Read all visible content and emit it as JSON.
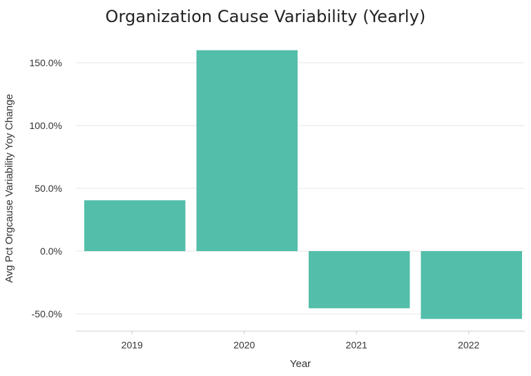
{
  "chart_data": {
    "type": "bar",
    "title": "Organization Cause Variability (Yearly)",
    "xlabel": "Year",
    "ylabel": "Avg Pct Orgcause Variability Yoy Change",
    "categories": [
      "2019",
      "2020",
      "2021",
      "2022"
    ],
    "values": [
      40.5,
      160.0,
      -45.5,
      -54.0
    ],
    "ylim": [
      -65,
      165
    ],
    "yticks": [
      -50,
      0,
      50,
      100,
      150
    ],
    "ytick_labels": [
      "-50.0%",
      "0.0%",
      "50.0%",
      "100.0%",
      "150.0%"
    ],
    "grid": true,
    "legend": "none",
    "bar_color": "#53bea9",
    "grid_color": "#e6e6e6",
    "axis_color": "#cccccc"
  }
}
